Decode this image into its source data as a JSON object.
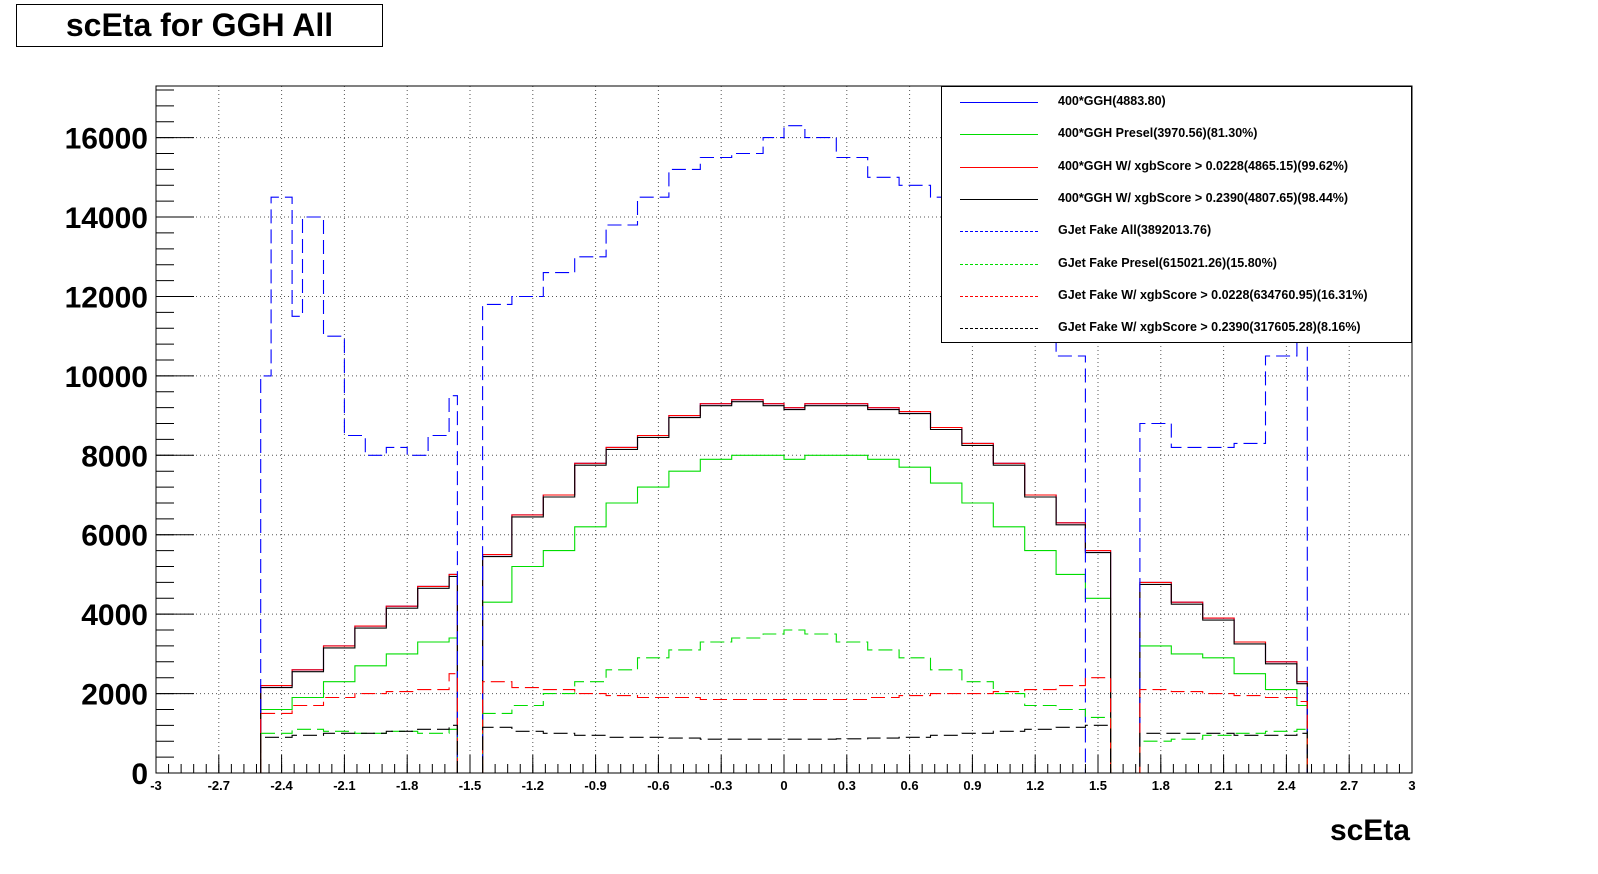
{
  "title": "scEta for GGH All",
  "chart_data": {
    "type": "line",
    "xlabel": "scEta",
    "ylabel": "",
    "xlim": [
      -3,
      3
    ],
    "ylim": [
      0,
      17300
    ],
    "x_ticks": [
      "-3",
      "-2.7",
      "-2.4",
      "-2.1",
      "-1.8",
      "-1.5",
      "-1.2",
      "-0.9",
      "-0.6",
      "-0.3",
      "0",
      "0.3",
      "0.6",
      "0.9",
      "1.2",
      "1.5",
      "1.8",
      "2.1",
      "2.4",
      "2.7",
      "3"
    ],
    "y_ticks": [
      "0",
      "2000",
      "4000",
      "6000",
      "8000",
      "10000",
      "12000",
      "14000",
      "16000"
    ],
    "grid": true,
    "legend_position": "top-right",
    "series": [
      {
        "name": "400*GGH(4883.80)",
        "color": "#0000ff",
        "style": "solid",
        "x": [
          -2.5,
          -2.35,
          -2.2,
          -2.05,
          -1.9,
          -1.75,
          -1.6,
          -1.56,
          -1.44,
          -1.3,
          -1.15,
          -1.0,
          -0.85,
          -0.7,
          -0.55,
          -0.4,
          -0.25,
          -0.1,
          0.0,
          0.1,
          0.25,
          0.4,
          0.55,
          0.7,
          0.85,
          1.0,
          1.15,
          1.3,
          1.44,
          1.56,
          1.7,
          1.85,
          2.0,
          2.15,
          2.3,
          2.45,
          2.5
        ],
        "y": [
          2200,
          2600,
          3200,
          3700,
          4200,
          4700,
          5000,
          0,
          5500,
          6500,
          7000,
          7800,
          8200,
          8500,
          9000,
          9300,
          9400,
          9300,
          9200,
          9300,
          9300,
          9200,
          9100,
          8700,
          8300,
          7800,
          7000,
          6300,
          5600,
          0,
          4800,
          4300,
          3900,
          3300,
          2800,
          2300,
          2200
        ]
      },
      {
        "name": "400*GGH Presel(3970.56)(81.30%)",
        "color": "#00dd00",
        "style": "solid",
        "x": [
          -2.5,
          -2.35,
          -2.2,
          -2.05,
          -1.9,
          -1.75,
          -1.6,
          -1.56,
          -1.44,
          -1.3,
          -1.15,
          -1.0,
          -0.85,
          -0.7,
          -0.55,
          -0.4,
          -0.25,
          -0.1,
          0.0,
          0.1,
          0.25,
          0.4,
          0.55,
          0.7,
          0.85,
          1.0,
          1.15,
          1.3,
          1.44,
          1.56,
          1.7,
          1.85,
          2.0,
          2.15,
          2.3,
          2.45,
          2.5
        ],
        "y": [
          1600,
          1900,
          2300,
          2700,
          3000,
          3300,
          3400,
          0,
          4300,
          5200,
          5600,
          6200,
          6800,
          7200,
          7600,
          7900,
          8000,
          8000,
          7900,
          8000,
          8000,
          7900,
          7700,
          7300,
          6800,
          6200,
          5600,
          5000,
          4400,
          0,
          3200,
          3000,
          2900,
          2500,
          2100,
          1700,
          1600
        ]
      },
      {
        "name": "400*GGH W/ xgbScore > 0.0228(4865.15)(99.62%)",
        "color": "#ff0000",
        "style": "solid",
        "x": [
          -2.5,
          -2.35,
          -2.2,
          -2.05,
          -1.9,
          -1.75,
          -1.6,
          -1.56,
          -1.44,
          -1.3,
          -1.15,
          -1.0,
          -0.85,
          -0.7,
          -0.55,
          -0.4,
          -0.25,
          -0.1,
          0.0,
          0.1,
          0.25,
          0.4,
          0.55,
          0.7,
          0.85,
          1.0,
          1.15,
          1.3,
          1.44,
          1.56,
          1.7,
          1.85,
          2.0,
          2.15,
          2.3,
          2.45,
          2.5
        ],
        "y": [
          2200,
          2600,
          3200,
          3700,
          4200,
          4700,
          5000,
          0,
          5500,
          6500,
          7000,
          7800,
          8200,
          8500,
          9000,
          9300,
          9400,
          9300,
          9200,
          9300,
          9300,
          9200,
          9100,
          8700,
          8300,
          7800,
          7000,
          6300,
          5600,
          0,
          4800,
          4300,
          3900,
          3300,
          2800,
          2300,
          2200
        ]
      },
      {
        "name": "400*GGH W/ xgbScore > 0.2390(4807.65)(98.44%)",
        "color": "#000000",
        "style": "solid",
        "x": [
          -2.5,
          -2.35,
          -2.2,
          -2.05,
          -1.9,
          -1.75,
          -1.6,
          -1.56,
          -1.44,
          -1.3,
          -1.15,
          -1.0,
          -0.85,
          -0.7,
          -0.55,
          -0.4,
          -0.25,
          -0.1,
          0.0,
          0.1,
          0.25,
          0.4,
          0.55,
          0.7,
          0.85,
          1.0,
          1.15,
          1.3,
          1.44,
          1.56,
          1.7,
          1.85,
          2.0,
          2.15,
          2.3,
          2.45,
          2.5
        ],
        "y": [
          2150,
          2550,
          3150,
          3650,
          4150,
          4650,
          4950,
          0,
          5450,
          6450,
          6950,
          7750,
          8150,
          8450,
          8950,
          9250,
          9350,
          9250,
          9150,
          9250,
          9250,
          9150,
          9050,
          8650,
          8250,
          7750,
          6950,
          6250,
          5550,
          0,
          4750,
          4250,
          3850,
          3250,
          2750,
          2250,
          2150
        ]
      },
      {
        "name": "GJet Fake All(3892013.76)",
        "color": "#0000ff",
        "style": "dashed",
        "x": [
          -2.5,
          -2.45,
          -2.35,
          -2.3,
          -2.2,
          -2.1,
          -2.0,
          -1.9,
          -1.8,
          -1.7,
          -1.6,
          -1.56,
          -1.44,
          -1.3,
          -1.15,
          -1.0,
          -0.85,
          -0.7,
          -0.55,
          -0.4,
          -0.25,
          -0.1,
          0.0,
          0.1,
          0.25,
          0.4,
          0.55,
          0.7,
          0.85,
          1.0,
          1.15,
          1.3,
          1.44,
          1.56,
          1.7,
          1.85,
          2.0,
          2.15,
          2.3,
          2.45,
          2.5
        ],
        "y": [
          10000,
          14500,
          11500,
          14000,
          11000,
          8500,
          8000,
          8200,
          8000,
          8500,
          9500,
          0,
          11800,
          12000,
          12600,
          13000,
          13800,
          14500,
          15200,
          15500,
          15600,
          16000,
          16300,
          16000,
          15500,
          15000,
          14800,
          14500,
          13500,
          12000,
          11000,
          10500,
          0,
          0,
          8800,
          8200,
          8200,
          8300,
          10500,
          12000,
          14000
        ]
      },
      {
        "name": "GJet Fake Presel(615021.26)(15.80%)",
        "color": "#00dd00",
        "style": "dashed",
        "x": [
          -2.5,
          -2.35,
          -2.2,
          -2.05,
          -1.9,
          -1.75,
          -1.6,
          -1.56,
          -1.44,
          -1.3,
          -1.15,
          -1.0,
          -0.85,
          -0.7,
          -0.55,
          -0.4,
          -0.25,
          -0.1,
          0.0,
          0.1,
          0.25,
          0.4,
          0.55,
          0.7,
          0.85,
          1.0,
          1.15,
          1.3,
          1.44,
          1.56,
          1.7,
          1.85,
          2.0,
          2.15,
          2.3,
          2.45,
          2.5
        ],
        "y": [
          1000,
          1100,
          1050,
          1000,
          1050,
          1000,
          1100,
          0,
          1500,
          1700,
          2000,
          2300,
          2600,
          2900,
          3100,
          3300,
          3400,
          3500,
          3600,
          3500,
          3300,
          3100,
          2900,
          2600,
          2300,
          2000,
          1700,
          1600,
          1400,
          0,
          800,
          850,
          950,
          1000,
          1050,
          1100,
          1000
        ]
      },
      {
        "name": "GJet Fake W/ xgbScore > 0.0228(634760.95)(16.31%)",
        "color": "#ff0000",
        "style": "dashed",
        "x": [
          -2.5,
          -2.35,
          -2.2,
          -2.05,
          -1.9,
          -1.75,
          -1.6,
          -1.56,
          -1.44,
          -1.3,
          -1.15,
          -1.0,
          -0.85,
          -0.7,
          -0.55,
          -0.4,
          -0.25,
          -0.1,
          0.0,
          0.1,
          0.25,
          0.4,
          0.55,
          0.7,
          0.85,
          1.0,
          1.15,
          1.3,
          1.44,
          1.56,
          1.7,
          1.85,
          2.0,
          2.15,
          2.3,
          2.45,
          2.5
        ],
        "y": [
          1500,
          1700,
          1900,
          2000,
          2050,
          2100,
          2500,
          0,
          2300,
          2150,
          2100,
          2000,
          1950,
          1900,
          1900,
          1850,
          1850,
          1850,
          1850,
          1850,
          1850,
          1900,
          1950,
          2000,
          2000,
          2050,
          2100,
          2200,
          2400,
          0,
          2100,
          2050,
          2000,
          1950,
          1900,
          1800,
          1700
        ]
      },
      {
        "name": "GJet Fake W/ xgbScore > 0.2390(317605.28)(8.16%)",
        "color": "#000000",
        "style": "dashed",
        "x": [
          -2.5,
          -2.35,
          -2.2,
          -2.05,
          -1.9,
          -1.75,
          -1.6,
          -1.56,
          -1.44,
          -1.3,
          -1.15,
          -1.0,
          -0.85,
          -0.7,
          -0.55,
          -0.4,
          -0.25,
          -0.1,
          0.0,
          0.1,
          0.25,
          0.4,
          0.55,
          0.7,
          0.85,
          1.0,
          1.15,
          1.3,
          1.44,
          1.56,
          1.7,
          1.85,
          2.0,
          2.15,
          2.3,
          2.45,
          2.5
        ],
        "y": [
          900,
          950,
          1000,
          1000,
          1050,
          1100,
          1200,
          0,
          1150,
          1050,
          1000,
          950,
          900,
          900,
          880,
          850,
          850,
          850,
          850,
          850,
          860,
          880,
          900,
          950,
          1000,
          1050,
          1100,
          1150,
          1200,
          0,
          1000,
          1000,
          1000,
          950,
          950,
          1000,
          1050
        ]
      }
    ]
  }
}
